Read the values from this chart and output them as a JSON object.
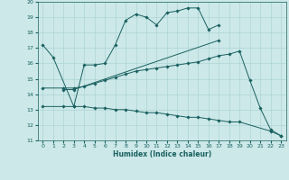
{
  "xlabel": "Humidex (Indice chaleur)",
  "background_color": "#cce8e8",
  "grid_color": "#afd4d4",
  "line_color": "#1a6060",
  "xlim": [
    -0.5,
    23.5
  ],
  "ylim": [
    11,
    20
  ],
  "yticks": [
    11,
    12,
    13,
    14,
    15,
    16,
    17,
    18,
    19,
    20
  ],
  "xticks": [
    0,
    1,
    2,
    3,
    4,
    5,
    6,
    7,
    8,
    9,
    10,
    11,
    12,
    13,
    14,
    15,
    16,
    17,
    18,
    19,
    20,
    21,
    22,
    23
  ],
  "series": [
    {
      "x": [
        0,
        1,
        3,
        4,
        5,
        6,
        7,
        8,
        9,
        10,
        11,
        12,
        13,
        14,
        15,
        16,
        17
      ],
      "y": [
        17.2,
        16.4,
        13.2,
        15.9,
        15.9,
        16.0,
        17.2,
        18.8,
        19.2,
        19.0,
        18.5,
        19.3,
        19.4,
        19.6,
        19.6,
        18.2,
        18.5
      ]
    },
    {
      "x": [
        2,
        3,
        17
      ],
      "y": [
        14.3,
        14.3,
        17.5
      ]
    },
    {
      "x": [
        0,
        2,
        3,
        4,
        5,
        6,
        7,
        8,
        9,
        10,
        11,
        12,
        13,
        14,
        15,
        16,
        17,
        18,
        19,
        20,
        21,
        22,
        23
      ],
      "y": [
        14.4,
        14.4,
        14.4,
        14.5,
        14.7,
        14.9,
        15.1,
        15.3,
        15.5,
        15.6,
        15.7,
        15.8,
        15.9,
        16.0,
        16.1,
        16.3,
        16.5,
        16.6,
        16.8,
        14.9,
        13.1,
        11.7,
        11.3
      ]
    },
    {
      "x": [
        0,
        2,
        3,
        4,
        5,
        6,
        7,
        8,
        9,
        10,
        11,
        12,
        13,
        14,
        15,
        16,
        17,
        18,
        19,
        22,
        23
      ],
      "y": [
        13.2,
        13.2,
        13.2,
        13.2,
        13.1,
        13.1,
        13.0,
        13.0,
        12.9,
        12.8,
        12.8,
        12.7,
        12.6,
        12.5,
        12.5,
        12.4,
        12.3,
        12.2,
        12.2,
        11.6,
        11.3
      ]
    }
  ]
}
